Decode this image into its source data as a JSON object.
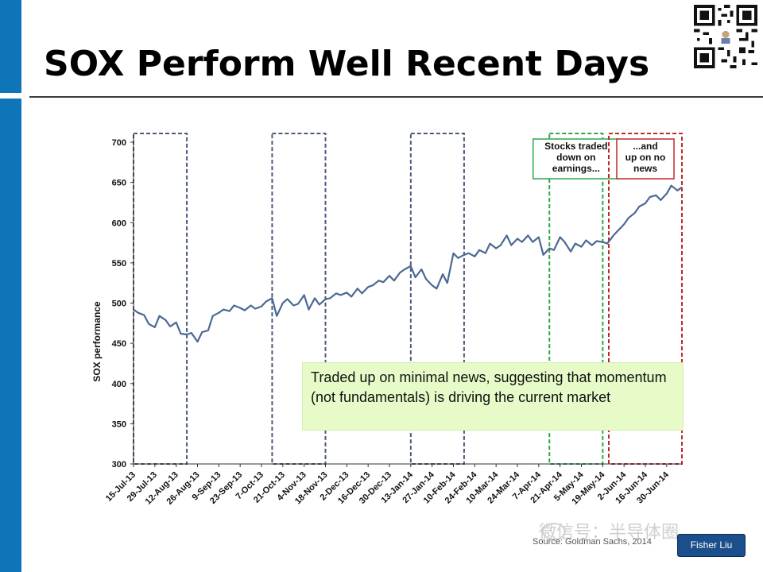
{
  "slide": {
    "title": "SOX Perform Well Recent Days",
    "callout": "Traded up on minimal news, suggesting that momentum (not fundamentals) is driving the current market",
    "watermark": "微信号：半导体圈",
    "source": "Source: Goldman Sachs, 2014",
    "author": "Fisher Liu",
    "colors": {
      "accent": "#0e75b8",
      "line": "#4a6994",
      "callout_bg": "#e7fbc9"
    }
  },
  "chart_data": {
    "type": "line",
    "ylabel": "SOX performance",
    "xlabel": "",
    "ylim": [
      300,
      700
    ],
    "yticks": [
      300,
      350,
      400,
      450,
      500,
      550,
      600,
      650,
      700
    ],
    "xlim": [
      "2013-07-15",
      "2014-07-10"
    ],
    "xticks": [
      "15-Jul-13",
      "29-Jul-13",
      "12-Aug-13",
      "26-Aug-13",
      "9-Sep-13",
      "23-Sep-13",
      "7-Oct-13",
      "21-Oct-13",
      "4-Nov-13",
      "18-Nov-13",
      "2-Dec-13",
      "16-Dec-13",
      "30-Dec-13",
      "13-Jan-14",
      "27-Jan-14",
      "10-Feb-14",
      "24-Feb-14",
      "10-Mar-14",
      "24-Mar-14",
      "7-Apr-14",
      "21-Apr-14",
      "5-May-14",
      "19-May-14",
      "2-Jun-14",
      "16-Jun-14",
      "30-Jun-14"
    ],
    "grid": false,
    "highlight_boxes": [
      {
        "start": "2013-07-15",
        "end": "2013-08-19",
        "style": "dashed",
        "color": "#4a5a7a",
        "label": ""
      },
      {
        "start": "2013-10-14",
        "end": "2013-11-18",
        "style": "dashed",
        "color": "#4a5a7a",
        "label": ""
      },
      {
        "start": "2014-01-13",
        "end": "2014-02-17",
        "style": "dashed",
        "color": "#4a5a7a",
        "label": ""
      },
      {
        "start": "2014-04-14",
        "end": "2014-05-19",
        "style": "dashed",
        "color": "#2aa84a",
        "label": "Stocks traded down on earnings..."
      },
      {
        "start": "2014-05-23",
        "end": "2014-07-10",
        "style": "dashed",
        "color": "#c0282a",
        "label": "...and up on no news"
      }
    ],
    "series": [
      {
        "name": "",
        "x": [
          "2013-07-15",
          "2013-07-18",
          "2013-07-22",
          "2013-07-25",
          "2013-07-29",
          "2013-08-01",
          "2013-08-05",
          "2013-08-08",
          "2013-08-12",
          "2013-08-15",
          "2013-08-19",
          "2013-08-22",
          "2013-08-26",
          "2013-08-29",
          "2013-09-02",
          "2013-09-05",
          "2013-09-09",
          "2013-09-12",
          "2013-09-16",
          "2013-09-19",
          "2013-09-23",
          "2013-09-26",
          "2013-09-30",
          "2013-10-03",
          "2013-10-07",
          "2013-10-10",
          "2013-10-14",
          "2013-10-17",
          "2013-10-21",
          "2013-10-24",
          "2013-10-28",
          "2013-10-31",
          "2013-11-04",
          "2013-11-07",
          "2013-11-11",
          "2013-11-14",
          "2013-11-18",
          "2013-11-21",
          "2013-11-25",
          "2013-11-28",
          "2013-12-02",
          "2013-12-05",
          "2013-12-09",
          "2013-12-12",
          "2013-12-16",
          "2013-12-19",
          "2013-12-23",
          "2013-12-26",
          "2013-12-30",
          "2014-01-02",
          "2014-01-06",
          "2014-01-09",
          "2014-01-13",
          "2014-01-16",
          "2014-01-20",
          "2014-01-23",
          "2014-01-27",
          "2014-01-30",
          "2014-02-03",
          "2014-02-06",
          "2014-02-10",
          "2014-02-13",
          "2014-02-17",
          "2014-02-20",
          "2014-02-24",
          "2014-02-27",
          "2014-03-03",
          "2014-03-06",
          "2014-03-10",
          "2014-03-13",
          "2014-03-17",
          "2014-03-20",
          "2014-03-24",
          "2014-03-27",
          "2014-03-31",
          "2014-04-03",
          "2014-04-07",
          "2014-04-10",
          "2014-04-14",
          "2014-04-17",
          "2014-04-21",
          "2014-04-24",
          "2014-04-28",
          "2014-05-01",
          "2014-05-05",
          "2014-05-08",
          "2014-05-12",
          "2014-05-15",
          "2014-05-19",
          "2014-05-22",
          "2014-05-26",
          "2014-05-29",
          "2014-06-02",
          "2014-06-05",
          "2014-06-09",
          "2014-06-12",
          "2014-06-16",
          "2014-06-19",
          "2014-06-23",
          "2014-06-26",
          "2014-06-30",
          "2014-07-03",
          "2014-07-07",
          "2014-07-10"
        ],
        "values": [
          492,
          488,
          485,
          474,
          470,
          484,
          479,
          471,
          476,
          462,
          461,
          463,
          452,
          464,
          466,
          484,
          488,
          492,
          490,
          497,
          494,
          491,
          497,
          493,
          496,
          502,
          506,
          484,
          500,
          505,
          497,
          499,
          510,
          492,
          506,
          498,
          505,
          506,
          512,
          510,
          513,
          508,
          518,
          512,
          520,
          522,
          528,
          526,
          534,
          528,
          538,
          542,
          546,
          532,
          542,
          530,
          522,
          518,
          536,
          525,
          562,
          556,
          560,
          562,
          558,
          566,
          562,
          574,
          568,
          572,
          584,
          572,
          580,
          576,
          584,
          576,
          582,
          560,
          568,
          566,
          582,
          576,
          564,
          574,
          570,
          578,
          572,
          577,
          576,
          574,
          584,
          590,
          598,
          606,
          612,
          620,
          624,
          632,
          634,
          628,
          636,
          646,
          640,
          644
        ]
      }
    ]
  }
}
